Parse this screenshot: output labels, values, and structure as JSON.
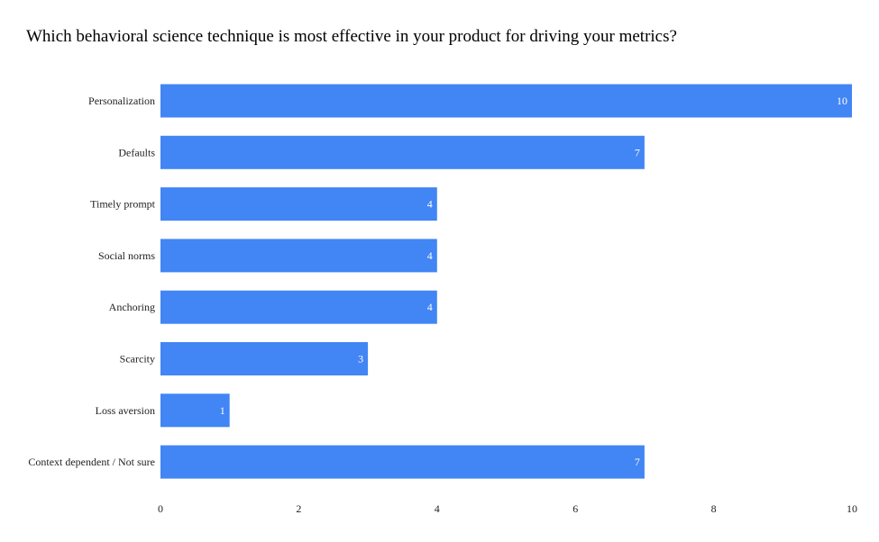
{
  "chart_data": {
    "type": "bar",
    "orientation": "horizontal",
    "title": "Which behavioral science technique is most effective in your product for driving your metrics?",
    "categories": [
      "Personalization",
      "Defaults",
      "Timely prompt",
      "Social norms",
      "Anchoring",
      "Scarcity",
      "Loss aversion",
      "Context dependent / Not sure"
    ],
    "values": [
      10,
      7,
      4,
      4,
      4,
      3,
      1,
      7
    ],
    "xlim": [
      0,
      10
    ],
    "xticks": [
      0,
      2,
      4,
      6,
      8,
      10
    ],
    "xlabel": "",
    "ylabel": "",
    "grid": false,
    "bar_color": "#4285f4",
    "data_label_color": "#ffffff"
  }
}
